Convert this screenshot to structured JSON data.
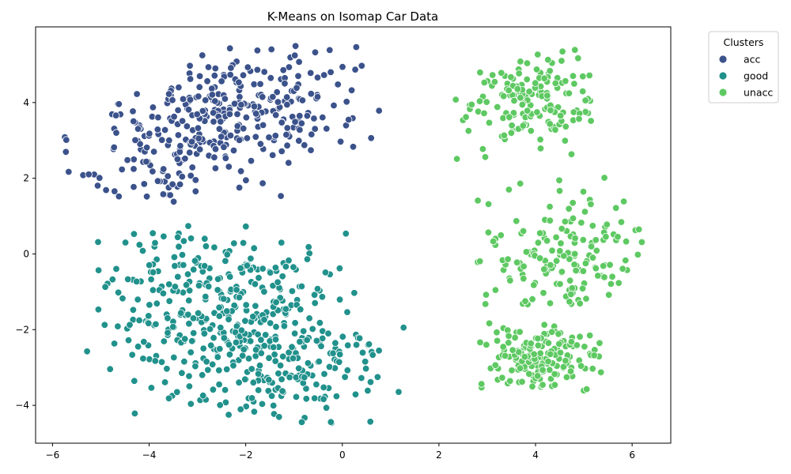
{
  "chart_data": {
    "type": "scatter",
    "title": "K-Means on Isomap Car Data",
    "xlabel": "",
    "ylabel": "",
    "xlim": [
      -6.35,
      6.8
    ],
    "ylim": [
      -5.0,
      6.0
    ],
    "xticks": [
      -6,
      -4,
      -2,
      0,
      2,
      4,
      6
    ],
    "yticks": [
      -4,
      -2,
      0,
      2,
      4
    ],
    "xtick_labels": [
      "−6",
      "−4",
      "−2",
      "0",
      "2",
      "4",
      "6"
    ],
    "ytick_labels": [
      "−4",
      "−2",
      "0",
      "2",
      "4"
    ],
    "grid": false,
    "legend": {
      "title": "Clusters",
      "placement": "outside-top-right"
    },
    "series": [
      {
        "name": "acc",
        "color": "#3b528b",
        "clusters": [
          {
            "x_range": [
              -5.8,
              0.8
            ],
            "y_range": [
              1.3,
              5.5
            ],
            "count": 360,
            "tilt": 0.35,
            "y_center": 3.6
          }
        ]
      },
      {
        "name": "good",
        "color": "#21918c",
        "clusters": [
          {
            "x_range": [
              -5.3,
              1.3
            ],
            "y_range": [
              -4.5,
              0.8
            ],
            "count": 500,
            "tilt": -0.28,
            "y_center": -1.9
          }
        ]
      },
      {
        "name": "unacc",
        "color": "#5ec962",
        "clusters": [
          {
            "x_range": [
              1.9,
              5.2
            ],
            "y_range": [
              2.5,
              5.4
            ],
            "count": 160,
            "center": [
              4.0,
              4.0
            ]
          },
          {
            "x_range": [
              2.6,
              6.2
            ],
            "y_range": [
              -1.6,
              2.1
            ],
            "count": 160,
            "center": [
              4.6,
              0.0
            ]
          },
          {
            "x_range": [
              2.6,
              5.4
            ],
            "y_range": [
              -3.7,
              -1.7
            ],
            "count": 160,
            "center": [
              4.1,
              -2.8
            ]
          }
        ]
      }
    ]
  }
}
